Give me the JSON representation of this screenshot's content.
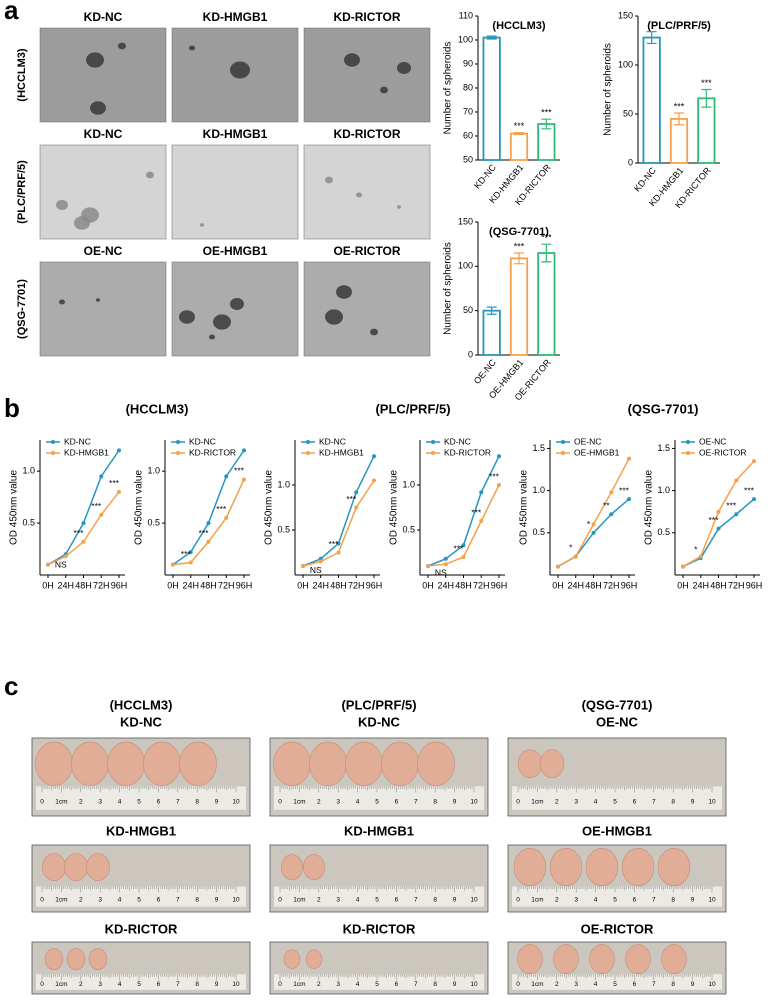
{
  "panel_labels": [
    "a",
    "b",
    "c"
  ],
  "spheroid_images": {
    "row_labels": [
      "(HCCLM3)",
      "(PLC/PRF/5)",
      "(QSG-7701)"
    ],
    "columns": [
      [
        "KD-NC",
        "KD-HMGB1",
        "KD-RICTOR"
      ],
      [
        "KD-NC",
        "KD-HMGB1",
        "KD-RICTOR"
      ],
      [
        "OE-NC",
        "OE-HMGB1",
        "OE-RICTOR"
      ]
    ]
  },
  "chart_data": [
    {
      "type": "bar",
      "title": "(HCCLM3)",
      "y_label": "Number of spheroids",
      "categories": [
        "KD-NC",
        "KD-HMGB1",
        "KD-RICTOR"
      ],
      "values": [
        101,
        61,
        65
      ],
      "errors": [
        0.6,
        0.4,
        2
      ],
      "significance": [
        null,
        "***",
        "***"
      ],
      "colors": [
        "#2596be",
        "#f5a04a",
        "#2dbb76"
      ],
      "ylim": [
        50,
        110
      ],
      "yticks": [
        50,
        60,
        70,
        80,
        90,
        100,
        110
      ]
    },
    {
      "type": "bar",
      "title": "(PLC/PRF/5)",
      "y_label": "Number of spheroids",
      "categories": [
        "KD-NC",
        "KD-HMGB1",
        "KD-RICTOR"
      ],
      "values": [
        128,
        45,
        66
      ],
      "errors": [
        6,
        6,
        9
      ],
      "significance": [
        null,
        "***",
        "***"
      ],
      "colors": [
        "#2596be",
        "#f5a04a",
        "#2dbb76"
      ],
      "ylim": [
        0,
        150
      ],
      "yticks": [
        0,
        50,
        100,
        150
      ]
    },
    {
      "type": "bar",
      "title": "(QSG-7701)",
      "y_label": "Number of spheroids",
      "categories": [
        "OE-NC",
        "OE-HMGB1",
        "OE-RICTOR"
      ],
      "values": [
        50,
        109,
        115
      ],
      "errors": [
        4,
        6,
        10
      ],
      "significance": [
        null,
        "***",
        "***"
      ],
      "colors": [
        "#2596be",
        "#f5a04a",
        "#2dbb76"
      ],
      "ylim": [
        0,
        150
      ],
      "yticks": [
        0,
        50,
        100,
        150
      ]
    },
    {
      "type": "line",
      "y_label": "OD 450nm value",
      "categories": [
        "0H",
        "24H",
        "48H",
        "72H",
        "96H"
      ],
      "series": [
        {
          "name": "KD-NC",
          "color": "#2596be",
          "values": [
            0.1,
            0.2,
            0.5,
            0.95,
            1.2
          ]
        },
        {
          "name": "KD-HMGB1",
          "color": "#f5a04a",
          "values": [
            0.1,
            0.18,
            0.32,
            0.58,
            0.8
          ]
        }
      ],
      "significance": [
        null,
        "NS",
        "***",
        "***",
        "***"
      ],
      "ylim": [
        0,
        1.3
      ],
      "yticks": [
        {
          "value": 0.5,
          "label": "0.5"
        },
        {
          "value": 1.0,
          "label": "1.0"
        }
      ]
    },
    {
      "type": "line",
      "y_label": "OD 450nm value",
      "categories": [
        "0H",
        "24H",
        "48H",
        "72H",
        "96H"
      ],
      "series": [
        {
          "name": "KD-NC",
          "color": "#2596be",
          "values": [
            0.1,
            0.22,
            0.5,
            0.95,
            1.2
          ]
        },
        {
          "name": "KD-RICTOR",
          "color": "#f5a04a",
          "values": [
            0.1,
            0.12,
            0.32,
            0.55,
            0.92
          ]
        }
      ],
      "significance": [
        null,
        "***",
        "***",
        "***",
        "***"
      ],
      "ylim": [
        0,
        1.3
      ],
      "yticks": [
        {
          "value": 0.5,
          "label": "0.5"
        },
        {
          "value": 1.0,
          "label": "1.0"
        }
      ]
    },
    {
      "type": "line",
      "y_label": "OD 450nm value",
      "categories": [
        "0H",
        "24H",
        "48H",
        "72H",
        "96H"
      ],
      "series": [
        {
          "name": "KD-NC",
          "color": "#2596be",
          "values": [
            0.1,
            0.18,
            0.35,
            0.92,
            1.32
          ]
        },
        {
          "name": "KD-HMGB1",
          "color": "#f5a04a",
          "values": [
            0.1,
            0.15,
            0.25,
            0.75,
            1.05
          ]
        }
      ],
      "significance": [
        null,
        "NS",
        "***",
        "***",
        null
      ],
      "ylim": [
        0,
        1.5
      ],
      "yticks": [
        {
          "value": 0.5,
          "label": "0.5"
        },
        {
          "value": 1.0,
          "label": "1.0"
        }
      ]
    },
    {
      "type": "line",
      "y_label": "OD 450nm value",
      "categories": [
        "0H",
        "24H",
        "48H",
        "72H",
        "96H"
      ],
      "series": [
        {
          "name": "KD-NC",
          "color": "#2596be",
          "values": [
            0.1,
            0.18,
            0.33,
            0.92,
            1.32
          ]
        },
        {
          "name": "KD-RICTOR",
          "color": "#f5a04a",
          "values": [
            0.1,
            0.12,
            0.2,
            0.6,
            1.0
          ]
        }
      ],
      "significance": [
        null,
        "NS",
        "***",
        "***",
        "***"
      ],
      "ylim": [
        0,
        1.5
      ],
      "yticks": [
        {
          "value": 0.5,
          "label": "0.5"
        },
        {
          "value": 1.0,
          "label": "1.0"
        }
      ]
    },
    {
      "type": "line",
      "y_label": "OD 450nm value",
      "categories": [
        "0H",
        "24H",
        "48H",
        "72H",
        "96H"
      ],
      "series": [
        {
          "name": "OE-NC",
          "color": "#2596be",
          "values": [
            0.1,
            0.22,
            0.5,
            0.72,
            0.9
          ]
        },
        {
          "name": "OE-HMGB1",
          "color": "#f5a04a",
          "values": [
            0.1,
            0.22,
            0.6,
            0.98,
            1.38
          ]
        }
      ],
      "significance": [
        null,
        "*",
        "*",
        "**",
        "***"
      ],
      "ylim": [
        0,
        1.6
      ],
      "yticks": [
        {
          "value": 0.5,
          "label": "0.5"
        },
        {
          "value": 1.0,
          "label": "1.0"
        },
        {
          "value": 1.5,
          "label": "1.5"
        }
      ]
    },
    {
      "type": "line",
      "y_label": "OD 450nm value",
      "categories": [
        "0H",
        "24H",
        "48H",
        "72H",
        "96H"
      ],
      "series": [
        {
          "name": "OE-NC",
          "color": "#2596be",
          "values": [
            0.1,
            0.2,
            0.55,
            0.72,
            0.9
          ]
        },
        {
          "name": "OE-RICTOR",
          "color": "#f5a04a",
          "values": [
            0.1,
            0.22,
            0.75,
            1.12,
            1.35
          ]
        }
      ],
      "significance": [
        null,
        "*",
        "***",
        "***",
        "***"
      ],
      "ylim": [
        0,
        1.6
      ],
      "yticks": [
        {
          "value": 0.5,
          "label": "0.5"
        },
        {
          "value": 1.0,
          "label": "1.0"
        },
        {
          "value": 1.5,
          "label": "1.5"
        }
      ]
    }
  ],
  "line_group_titles": [
    "(HCCLM3)",
    "(PLC/PRF/5)",
    "(QSG-7701)"
  ],
  "tumor_groups": [
    {
      "cell_line": "(HCCLM3)",
      "rows": [
        "KD-NC",
        "KD-HMGB1",
        "KD-RICTOR"
      ]
    },
    {
      "cell_line": "(PLC/PRF/5)",
      "rows": [
        "KD-NC",
        "KD-HMGB1",
        "KD-RICTOR"
      ]
    },
    {
      "cell_line": "(QSG-7701)",
      "rows": [
        "OE-NC",
        "OE-HMGB1",
        "OE-RICTOR"
      ]
    }
  ],
  "ruler_labels": [
    "0",
    "1cm",
    "2",
    "3",
    "4",
    "5",
    "6",
    "7",
    "8",
    "9",
    "10"
  ]
}
